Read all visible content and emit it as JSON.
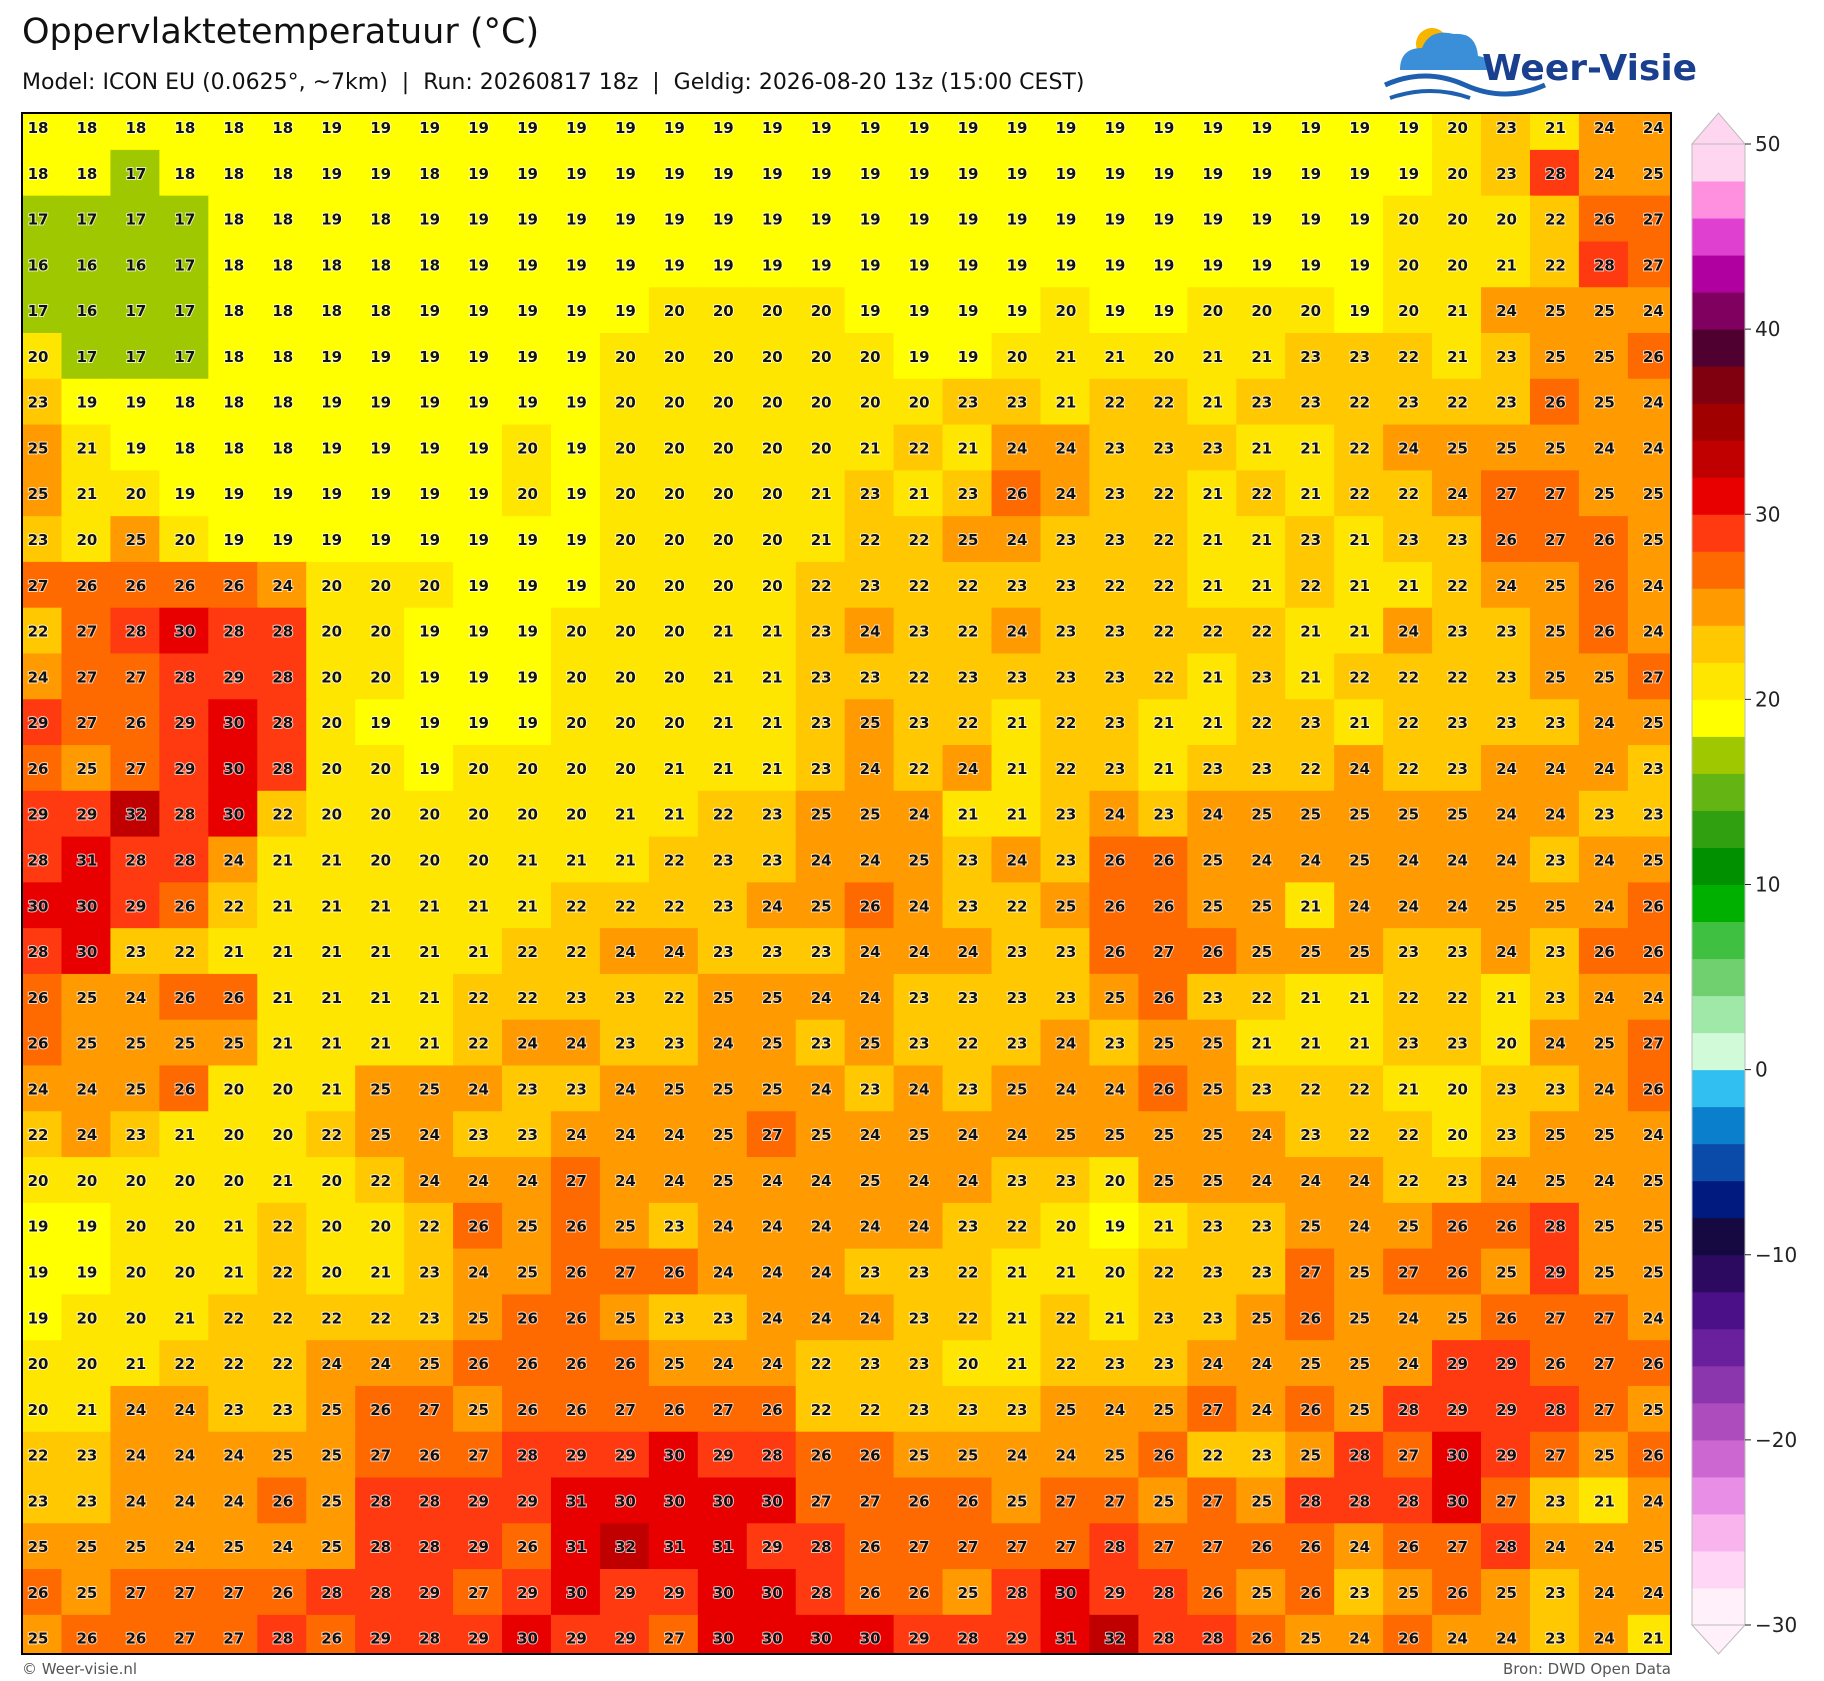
{
  "header": {
    "title": "Oppervlaktetemperatuur (°C)",
    "subtitle": "Model: ICON EU (0.0625°, ~7km)  |  Run: 20260817 18z  |  Geldig: 2026-08-20 13z (15:00 CEST)",
    "logo": "Weer-Visie"
  },
  "grid": {
    "rows": [
      [
        18,
        18,
        18,
        18,
        18,
        18,
        19,
        19,
        19,
        19,
        19,
        19,
        19,
        19,
        19,
        19,
        19,
        19,
        19,
        19,
        19,
        19,
        19,
        19,
        19,
        19,
        19,
        19,
        19,
        20,
        23,
        21,
        24,
        24
      ],
      [
        18,
        18,
        17,
        18,
        18,
        18,
        19,
        19,
        18,
        19,
        19,
        19,
        19,
        19,
        19,
        19,
        19,
        19,
        19,
        19,
        19,
        19,
        19,
        19,
        19,
        19,
        19,
        19,
        19,
        20,
        23,
        28,
        24,
        25
      ],
      [
        17,
        17,
        17,
        17,
        18,
        18,
        19,
        18,
        19,
        19,
        19,
        19,
        19,
        19,
        19,
        19,
        19,
        19,
        19,
        19,
        19,
        19,
        19,
        19,
        19,
        19,
        19,
        19,
        20,
        20,
        20,
        22,
        26,
        27
      ],
      [
        16,
        16,
        16,
        17,
        18,
        18,
        18,
        18,
        18,
        19,
        19,
        19,
        19,
        19,
        19,
        19,
        19,
        19,
        19,
        19,
        19,
        19,
        19,
        19,
        19,
        19,
        19,
        19,
        20,
        20,
        21,
        22,
        28,
        27
      ],
      [
        17,
        16,
        17,
        17,
        18,
        18,
        18,
        18,
        19,
        19,
        19,
        19,
        19,
        20,
        20,
        20,
        20,
        19,
        19,
        19,
        19,
        20,
        19,
        19,
        20,
        20,
        20,
        19,
        20,
        21,
        24,
        25,
        25,
        24
      ],
      [
        20,
        17,
        17,
        17,
        18,
        18,
        19,
        19,
        19,
        19,
        19,
        19,
        20,
        20,
        20,
        20,
        20,
        20,
        19,
        19,
        20,
        21,
        21,
        20,
        21,
        21,
        23,
        23,
        22,
        21,
        23,
        25,
        25,
        26
      ],
      [
        23,
        19,
        19,
        18,
        18,
        18,
        19,
        19,
        19,
        19,
        19,
        19,
        20,
        20,
        20,
        20,
        20,
        20,
        20,
        23,
        23,
        21,
        22,
        22,
        21,
        23,
        23,
        22,
        23,
        22,
        23,
        26,
        25,
        24
      ],
      [
        25,
        21,
        19,
        18,
        18,
        18,
        19,
        19,
        19,
        19,
        20,
        19,
        20,
        20,
        20,
        20,
        20,
        21,
        22,
        21,
        24,
        24,
        23,
        23,
        23,
        21,
        21,
        22,
        24,
        25,
        25,
        25,
        24,
        24
      ],
      [
        25,
        21,
        20,
        19,
        19,
        19,
        19,
        19,
        19,
        19,
        20,
        19,
        20,
        20,
        20,
        20,
        21,
        23,
        21,
        23,
        26,
        24,
        23,
        22,
        21,
        22,
        21,
        22,
        22,
        24,
        27,
        27,
        25,
        25
      ],
      [
        23,
        20,
        25,
        20,
        19,
        19,
        19,
        19,
        19,
        19,
        19,
        19,
        20,
        20,
        20,
        20,
        21,
        22,
        22,
        25,
        24,
        23,
        23,
        22,
        21,
        21,
        23,
        21,
        23,
        23,
        26,
        27,
        26,
        25
      ],
      [
        27,
        26,
        26,
        26,
        26,
        24,
        20,
        20,
        20,
        19,
        19,
        19,
        20,
        20,
        20,
        20,
        22,
        23,
        22,
        22,
        23,
        23,
        22,
        22,
        21,
        21,
        22,
        21,
        21,
        22,
        24,
        25,
        26,
        24
      ],
      [
        22,
        27,
        28,
        30,
        28,
        28,
        20,
        20,
        19,
        19,
        19,
        20,
        20,
        20,
        21,
        21,
        23,
        24,
        23,
        22,
        24,
        23,
        23,
        22,
        22,
        22,
        21,
        21,
        24,
        23,
        23,
        25,
        26,
        24
      ],
      [
        24,
        27,
        27,
        28,
        29,
        28,
        20,
        20,
        19,
        19,
        19,
        20,
        20,
        20,
        21,
        21,
        23,
        23,
        22,
        23,
        23,
        23,
        23,
        22,
        21,
        23,
        21,
        22,
        22,
        22,
        23,
        25,
        25,
        27
      ],
      [
        29,
        27,
        26,
        29,
        30,
        28,
        20,
        19,
        19,
        19,
        19,
        20,
        20,
        20,
        21,
        21,
        23,
        25,
        23,
        22,
        21,
        22,
        23,
        21,
        21,
        22,
        23,
        21,
        22,
        23,
        23,
        23,
        24,
        25
      ],
      [
        26,
        25,
        27,
        29,
        30,
        28,
        20,
        20,
        19,
        20,
        20,
        20,
        20,
        21,
        21,
        21,
        23,
        24,
        22,
        24,
        21,
        22,
        23,
        21,
        23,
        23,
        22,
        24,
        22,
        23,
        24,
        24,
        24,
        23
      ],
      [
        29,
        29,
        32,
        28,
        30,
        22,
        20,
        20,
        20,
        20,
        20,
        20,
        21,
        21,
        22,
        23,
        25,
        25,
        24,
        21,
        21,
        23,
        24,
        23,
        24,
        25,
        25,
        25,
        25,
        25,
        24,
        24,
        23,
        23
      ],
      [
        28,
        31,
        28,
        28,
        24,
        21,
        21,
        20,
        20,
        20,
        21,
        21,
        21,
        22,
        23,
        23,
        24,
        24,
        25,
        23,
        24,
        23,
        26,
        26,
        25,
        24,
        24,
        25,
        24,
        24,
        24,
        23,
        24,
        25
      ],
      [
        30,
        30,
        29,
        26,
        22,
        21,
        21,
        21,
        21,
        21,
        21,
        22,
        22,
        22,
        23,
        24,
        25,
        26,
        24,
        23,
        22,
        25,
        26,
        26,
        25,
        25,
        21,
        24,
        24,
        24,
        25,
        25,
        24,
        26
      ],
      [
        28,
        30,
        23,
        22,
        21,
        21,
        21,
        21,
        21,
        21,
        22,
        22,
        24,
        24,
        23,
        23,
        23,
        24,
        24,
        24,
        23,
        23,
        26,
        27,
        26,
        25,
        25,
        25,
        23,
        23,
        24,
        23,
        26,
        26
      ],
      [
        26,
        25,
        24,
        26,
        26,
        21,
        21,
        21,
        21,
        22,
        22,
        23,
        23,
        22,
        25,
        25,
        24,
        24,
        23,
        23,
        23,
        23,
        25,
        26,
        23,
        22,
        21,
        21,
        22,
        22,
        21,
        23,
        24,
        24
      ],
      [
        26,
        25,
        25,
        25,
        25,
        21,
        21,
        21,
        21,
        22,
        24,
        24,
        23,
        23,
        24,
        25,
        23,
        25,
        23,
        22,
        23,
        24,
        23,
        25,
        25,
        21,
        21,
        21,
        23,
        23,
        20,
        24,
        25,
        27
      ],
      [
        24,
        24,
        25,
        26,
        20,
        20,
        21,
        25,
        25,
        24,
        23,
        23,
        24,
        25,
        25,
        25,
        24,
        23,
        24,
        23,
        25,
        24,
        24,
        26,
        25,
        23,
        22,
        22,
        21,
        20,
        23,
        23,
        24,
        26
      ],
      [
        22,
        24,
        23,
        21,
        20,
        20,
        22,
        25,
        24,
        23,
        23,
        24,
        24,
        24,
        25,
        27,
        25,
        24,
        25,
        24,
        24,
        25,
        25,
        25,
        25,
        24,
        23,
        22,
        22,
        20,
        23,
        25,
        25,
        24
      ],
      [
        20,
        20,
        20,
        20,
        20,
        21,
        20,
        22,
        24,
        24,
        24,
        27,
        24,
        24,
        25,
        24,
        24,
        25,
        24,
        24,
        23,
        23,
        20,
        25,
        25,
        24,
        24,
        24,
        22,
        23,
        24,
        25,
        24,
        25
      ],
      [
        19,
        19,
        20,
        20,
        21,
        22,
        20,
        20,
        22,
        26,
        25,
        26,
        25,
        23,
        24,
        24,
        24,
        24,
        24,
        23,
        22,
        20,
        19,
        21,
        23,
        23,
        25,
        24,
        25,
        26,
        26,
        28,
        25,
        25
      ],
      [
        19,
        19,
        20,
        20,
        21,
        22,
        20,
        21,
        23,
        24,
        25,
        26,
        27,
        26,
        24,
        24,
        24,
        23,
        23,
        22,
        21,
        21,
        20,
        22,
        23,
        23,
        27,
        25,
        27,
        26,
        25,
        29,
        25,
        25
      ],
      [
        19,
        20,
        20,
        21,
        22,
        22,
        22,
        22,
        23,
        25,
        26,
        26,
        25,
        23,
        23,
        24,
        24,
        24,
        23,
        22,
        21,
        22,
        21,
        23,
        23,
        25,
        26,
        25,
        24,
        25,
        26,
        27,
        27,
        24
      ],
      [
        20,
        20,
        21,
        22,
        22,
        22,
        24,
        24,
        25,
        26,
        26,
        26,
        26,
        25,
        24,
        24,
        22,
        23,
        23,
        20,
        21,
        22,
        23,
        23,
        24,
        24,
        25,
        25,
        24,
        29,
        29,
        26,
        27,
        26
      ],
      [
        20,
        21,
        24,
        24,
        23,
        23,
        25,
        26,
        27,
        25,
        26,
        26,
        27,
        26,
        27,
        26,
        22,
        22,
        23,
        23,
        23,
        25,
        24,
        25,
        27,
        24,
        26,
        25,
        28,
        29,
        29,
        28,
        27,
        25
      ],
      [
        22,
        23,
        24,
        24,
        24,
        25,
        25,
        27,
        26,
        27,
        28,
        29,
        29,
        30,
        29,
        28,
        26,
        26,
        25,
        25,
        24,
        24,
        25,
        26,
        22,
        23,
        25,
        28,
        27,
        30,
        29,
        27,
        25,
        26
      ],
      [
        23,
        23,
        24,
        24,
        24,
        26,
        25,
        28,
        28,
        29,
        29,
        31,
        30,
        30,
        30,
        30,
        27,
        27,
        26,
        26,
        25,
        27,
        27,
        25,
        27,
        25,
        28,
        28,
        28,
        30,
        27,
        23,
        21,
        24
      ],
      [
        25,
        25,
        25,
        24,
        25,
        24,
        25,
        28,
        28,
        29,
        26,
        31,
        32,
        31,
        31,
        29,
        28,
        26,
        27,
        27,
        27,
        27,
        28,
        27,
        27,
        26,
        26,
        24,
        26,
        27,
        28,
        24,
        24,
        25
      ],
      [
        26,
        25,
        27,
        27,
        27,
        26,
        28,
        28,
        29,
        27,
        29,
        30,
        29,
        29,
        30,
        30,
        28,
        26,
        26,
        25,
        28,
        30,
        29,
        28,
        26,
        25,
        26,
        23,
        25,
        26,
        25,
        23,
        24,
        24
      ],
      [
        25,
        26,
        26,
        27,
        27,
        28,
        26,
        29,
        28,
        29,
        30,
        29,
        29,
        27,
        30,
        30,
        30,
        30,
        29,
        28,
        29,
        31,
        32,
        28,
        28,
        26,
        25,
        24,
        26,
        24,
        24,
        23,
        24,
        21
      ]
    ]
  },
  "colorbar": {
    "lim": [
      -30,
      50
    ],
    "ticks": [
      {
        "value": -30,
        "label": "−30"
      },
      {
        "value": -20,
        "label": "−20"
      },
      {
        "value": -10,
        "label": "−10"
      },
      0,
      10,
      20,
      30,
      40,
      50
    ],
    "colors": [
      "#fff0fa",
      "#ffd6f5",
      "#f9b4ee",
      "#e88ee6",
      "#cc66d0",
      "#ad4cbd",
      "#8c36ad",
      "#6a1f9c",
      "#4b0f88",
      "#2c0a60",
      "#160840",
      "#001a80",
      "#0a4aa8",
      "#0a80cc",
      "#30bff0",
      "#d0fad8",
      "#a0e8a8",
      "#70d070",
      "#40c040",
      "#00b000",
      "#009000",
      "#30a010",
      "#64b414",
      "#a0c800",
      "#ffff00",
      "#ffe600",
      "#ffc800",
      "#ff9a00",
      "#ff6a00",
      "#ff3a10",
      "#e80000",
      "#c00000",
      "#a00000",
      "#800010",
      "#500030",
      "#800060",
      "#b000a0",
      "#e040d0",
      "#ff90e0",
      "#ffd6f0"
    ]
  },
  "footer": {
    "left": "© Weer-visie.nl",
    "right": "Bron: DWD Open Data"
  }
}
